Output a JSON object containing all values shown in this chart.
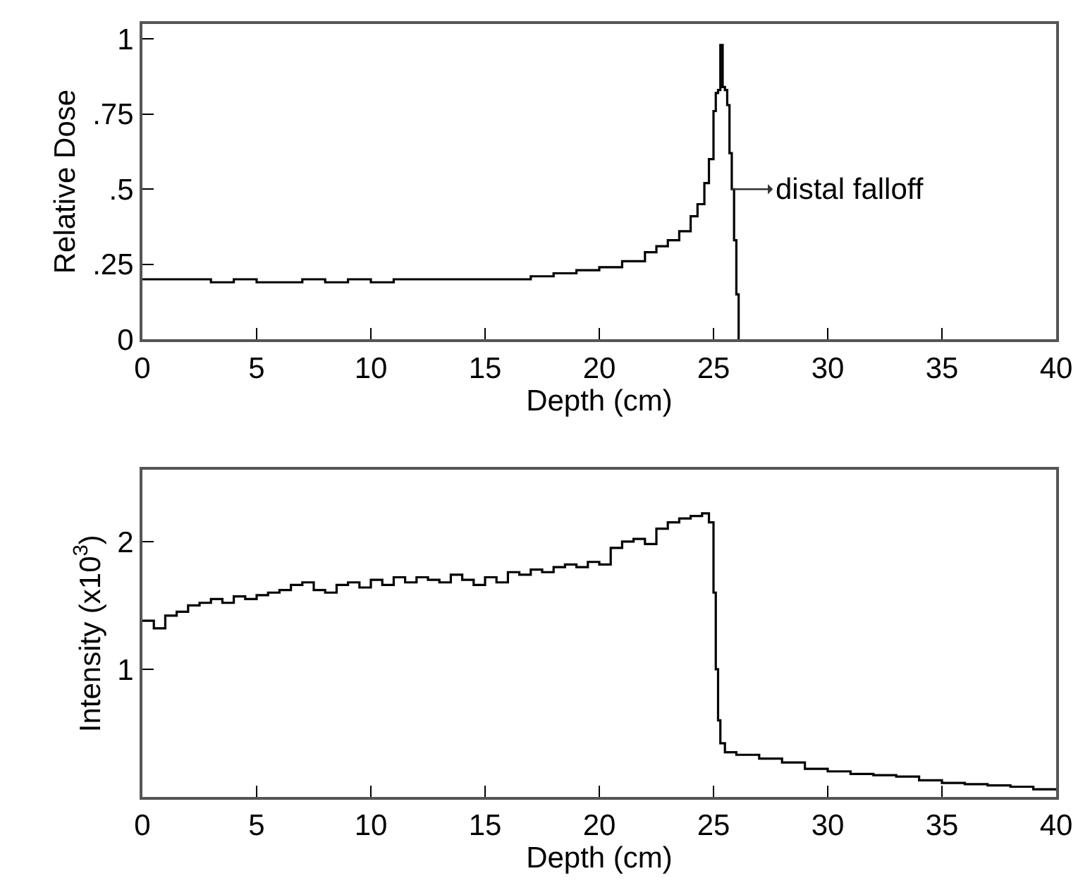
{
  "chart_data": [
    {
      "type": "step",
      "xlabel": "Depth (cm)",
      "ylabel": "Relative Dose",
      "x": [
        0,
        1,
        2,
        3,
        4,
        5,
        6,
        7,
        8,
        9,
        10,
        11,
        12,
        13,
        14,
        15,
        16,
        17,
        18,
        19,
        20,
        21,
        22,
        22.5,
        23,
        23.5,
        24,
        24.3,
        24.6,
        24.8,
        25.0,
        25.1,
        25.2,
        25.3,
        25.4,
        25.5,
        25.6,
        25.7,
        25.8,
        25.9,
        26.0,
        26.1
      ],
      "values": [
        0.2,
        0.2,
        0.2,
        0.19,
        0.2,
        0.19,
        0.19,
        0.2,
        0.19,
        0.2,
        0.19,
        0.2,
        0.2,
        0.2,
        0.2,
        0.2,
        0.2,
        0.21,
        0.22,
        0.23,
        0.24,
        0.26,
        0.29,
        0.31,
        0.33,
        0.36,
        0.41,
        0.45,
        0.52,
        0.6,
        0.76,
        0.82,
        0.83,
        0.98,
        0.84,
        0.83,
        0.78,
        0.62,
        0.5,
        0.33,
        0.15,
        0
      ],
      "xlim": [
        0,
        40
      ],
      "xticks": [
        0,
        5,
        10,
        15,
        20,
        25,
        30,
        35,
        40
      ],
      "ylim": [
        0,
        1.05
      ],
      "yticks": [
        {
          "value": 0,
          "label": "0"
        },
        {
          "value": 0.25,
          "label": ".25"
        },
        {
          "value": 0.5,
          "label": ".5"
        },
        {
          "value": 0.75,
          "label": ".75"
        },
        {
          "value": 1,
          "label": "1"
        }
      ],
      "color": "#000000",
      "annotations": [
        {
          "text": "distal falloff",
          "x": 25.8,
          "y": 0.5
        }
      ]
    },
    {
      "type": "step",
      "xlabel": "Depth (cm)",
      "ylabel": "Intensity (x10$^{3}$)",
      "x": [
        0,
        0.5,
        1,
        1.5,
        2,
        2.5,
        3,
        3.5,
        4,
        4.5,
        5,
        5.5,
        6,
        6.5,
        7,
        7.5,
        8,
        8.5,
        9,
        9.5,
        10,
        10.5,
        11,
        11.5,
        12,
        12.5,
        13,
        13.5,
        14,
        14.5,
        15,
        15.5,
        16,
        16.5,
        17,
        17.5,
        18,
        18.5,
        19,
        19.5,
        20,
        20.5,
        21,
        21.5,
        22,
        22.5,
        23,
        23.5,
        24,
        24.5,
        24.8,
        25.0,
        25.1,
        25.2,
        25.3,
        25.5,
        26,
        27,
        28,
        29,
        30,
        31,
        32,
        33,
        34,
        35,
        36,
        37,
        38,
        39,
        40
      ],
      "values": [
        1.38,
        1.32,
        1.42,
        1.45,
        1.5,
        1.52,
        1.55,
        1.52,
        1.57,
        1.55,
        1.58,
        1.6,
        1.62,
        1.66,
        1.68,
        1.62,
        1.6,
        1.66,
        1.68,
        1.64,
        1.7,
        1.66,
        1.72,
        1.68,
        1.72,
        1.7,
        1.68,
        1.74,
        1.7,
        1.66,
        1.72,
        1.68,
        1.76,
        1.74,
        1.78,
        1.76,
        1.8,
        1.82,
        1.8,
        1.84,
        1.82,
        1.95,
        2.0,
        2.02,
        1.98,
        2.1,
        2.15,
        2.18,
        2.2,
        2.22,
        2.15,
        1.6,
        1.0,
        0.6,
        0.42,
        0.35,
        0.33,
        0.3,
        0.27,
        0.22,
        0.2,
        0.18,
        0.17,
        0.16,
        0.13,
        0.11,
        0.1,
        0.09,
        0.08,
        0.06,
        0.05
      ],
      "xlim": [
        0,
        40
      ],
      "xticks": [
        0,
        5,
        10,
        15,
        20,
        25,
        30,
        35,
        40
      ],
      "ylim": [
        0,
        2.56
      ],
      "yticks": [
        1,
        2
      ],
      "color": "#000000"
    }
  ]
}
